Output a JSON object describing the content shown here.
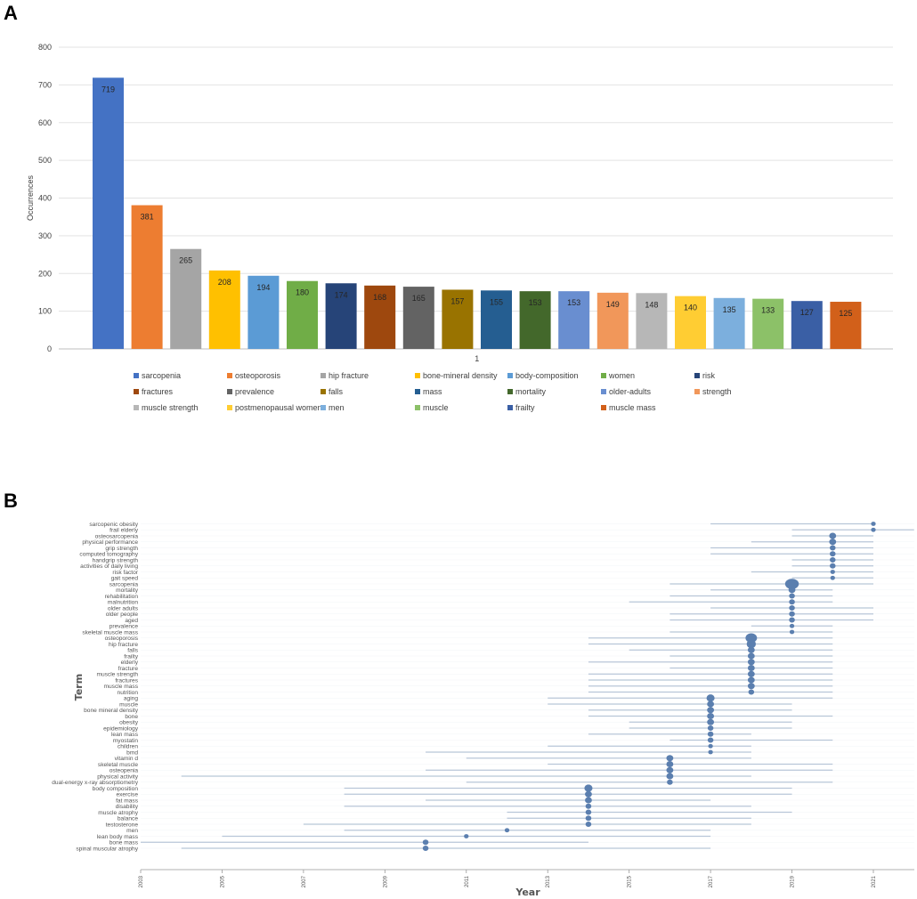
{
  "chart_data": [
    {
      "panel": "A",
      "type": "bar",
      "ylabel": "Occurrences",
      "xlabel": "",
      "category_tick": "1",
      "ylim": [
        0,
        800
      ],
      "yticks": [
        0,
        100,
        200,
        300,
        400,
        500,
        600,
        700,
        800
      ],
      "grid": true,
      "legend_position": "bottom",
      "series": [
        {
          "name": "sarcopenia",
          "value": 719,
          "color": "#4472C4"
        },
        {
          "name": "osteoporosis",
          "value": 381,
          "color": "#ED7D31"
        },
        {
          "name": "hip fracture",
          "value": 265,
          "color": "#A5A5A5"
        },
        {
          "name": "bone-mineral density",
          "value": 208,
          "color": "#FFC000"
        },
        {
          "name": "body-composition",
          "value": 194,
          "color": "#5B9BD5"
        },
        {
          "name": "women",
          "value": 180,
          "color": "#70AD47"
        },
        {
          "name": "risk",
          "value": 174,
          "color": "#264478"
        },
        {
          "name": "fractures",
          "value": 168,
          "color": "#9E480E"
        },
        {
          "name": "prevalence",
          "value": 165,
          "color": "#636363"
        },
        {
          "name": "falls",
          "value": 157,
          "color": "#997300"
        },
        {
          "name": "mass",
          "value": 155,
          "color": "#255E91"
        },
        {
          "name": "mortality",
          "value": 153,
          "color": "#43682B"
        },
        {
          "name": "older-adults",
          "value": 153,
          "color": "#698ED0"
        },
        {
          "name": "strength",
          "value": 149,
          "color": "#F1975A"
        },
        {
          "name": "muscle strength",
          "value": 148,
          "color": "#B7B7B7"
        },
        {
          "name": "postmenopausal women",
          "value": 140,
          "color": "#FFCD33"
        },
        {
          "name": "men",
          "value": 135,
          "color": "#7CAFDD"
        },
        {
          "name": "muscle",
          "value": 133,
          "color": "#8CC168"
        },
        {
          "name": "frailty",
          "value": 127,
          "color": "#3A5FA5"
        },
        {
          "name": "muscle mass",
          "value": 125,
          "color": "#D2601A"
        }
      ]
    },
    {
      "panel": "B",
      "type": "scatter",
      "xlabel": "Year",
      "ylabel": "Term",
      "xlim": [
        2003,
        2022
      ],
      "xticks": [
        "2003",
        "2005",
        "2007",
        "2009",
        "2011",
        "2013",
        "2015",
        "2017",
        "2019",
        "2021"
      ],
      "point_color": "#5B7FAF",
      "line_color": "#B8C6D8",
      "terms": [
        {
          "term": "sarcopenic obesity",
          "start": 2017,
          "end": 2021,
          "median": 2021,
          "size": 1
        },
        {
          "term": "frail elderly",
          "start": 2019,
          "end": 2022,
          "median": 2021,
          "size": 1
        },
        {
          "term": "osteosarcopenia",
          "start": 2019,
          "end": 2021,
          "median": 2020,
          "size": 2
        },
        {
          "term": "physical performance",
          "start": 2018,
          "end": 2021,
          "median": 2020,
          "size": 2
        },
        {
          "term": "grip strength",
          "start": 2017,
          "end": 2021,
          "median": 2020,
          "size": 1.5
        },
        {
          "term": "computed tomography",
          "start": 2017,
          "end": 2021,
          "median": 2020,
          "size": 1.5
        },
        {
          "term": "handgrip strength",
          "start": 2019,
          "end": 2021,
          "median": 2020,
          "size": 1.5
        },
        {
          "term": "activities of daily living",
          "start": 2019,
          "end": 2021,
          "median": 2020,
          "size": 1.5
        },
        {
          "term": "risk factor",
          "start": 2018,
          "end": 2021,
          "median": 2020,
          "size": 1
        },
        {
          "term": "gait speed",
          "start": 2019,
          "end": 2021,
          "median": 2020,
          "size": 1
        },
        {
          "term": "sarcopenia",
          "start": 2016,
          "end": 2021,
          "median": 2019,
          "size": 5
        },
        {
          "term": "mortality",
          "start": 2017,
          "end": 2020,
          "median": 2019,
          "size": 2
        },
        {
          "term": "rehabilitation",
          "start": 2016,
          "end": 2020,
          "median": 2019,
          "size": 1.5
        },
        {
          "term": "malnutrition",
          "start": 2015,
          "end": 2020,
          "median": 2019,
          "size": 1.5
        },
        {
          "term": "older adults",
          "start": 2017,
          "end": 2021,
          "median": 2019,
          "size": 1.5
        },
        {
          "term": "older people",
          "start": 2016,
          "end": 2021,
          "median": 2019,
          "size": 1.5
        },
        {
          "term": "aged",
          "start": 2016,
          "end": 2021,
          "median": 2019,
          "size": 1.5
        },
        {
          "term": "prevalence",
          "start": 2018,
          "end": 2020,
          "median": 2019,
          "size": 1
        },
        {
          "term": "skeletal muscle mass",
          "start": 2016,
          "end": 2020,
          "median": 2019,
          "size": 1
        },
        {
          "term": "osteoporosis",
          "start": 2014,
          "end": 2020,
          "median": 2018,
          "size": 4
        },
        {
          "term": "hip fracture",
          "start": 2014,
          "end": 2020,
          "median": 2018,
          "size": 3
        },
        {
          "term": "falls",
          "start": 2015,
          "end": 2020,
          "median": 2018,
          "size": 2
        },
        {
          "term": "frailty",
          "start": 2016,
          "end": 2020,
          "median": 2018,
          "size": 2
        },
        {
          "term": "elderly",
          "start": 2014,
          "end": 2020,
          "median": 2018,
          "size": 2
        },
        {
          "term": "fracture",
          "start": 2016,
          "end": 2020,
          "median": 2018,
          "size": 2
        },
        {
          "term": "muscle strength",
          "start": 2014,
          "end": 2020,
          "median": 2018,
          "size": 2
        },
        {
          "term": "fractures",
          "start": 2014,
          "end": 2020,
          "median": 2018,
          "size": 2
        },
        {
          "term": "muscle mass",
          "start": 2014,
          "end": 2020,
          "median": 2018,
          "size": 2
        },
        {
          "term": "nutrition",
          "start": 2014,
          "end": 2020,
          "median": 2018,
          "size": 1.5
        },
        {
          "term": "aging",
          "start": 2013,
          "end": 2020,
          "median": 2017,
          "size": 2.5
        },
        {
          "term": "muscle",
          "start": 2013,
          "end": 2019,
          "median": 2017,
          "size": 2
        },
        {
          "term": "bone mineral density",
          "start": 2014,
          "end": 2019,
          "median": 2017,
          "size": 2
        },
        {
          "term": "bone",
          "start": 2014,
          "end": 2020,
          "median": 2017,
          "size": 2
        },
        {
          "term": "obesity",
          "start": 2015,
          "end": 2019,
          "median": 2017,
          "size": 2
        },
        {
          "term": "epidemiology",
          "start": 2015,
          "end": 2019,
          "median": 2017,
          "size": 1.5
        },
        {
          "term": "lean mass",
          "start": 2014,
          "end": 2018,
          "median": 2017,
          "size": 1.5
        },
        {
          "term": "myostatin",
          "start": 2016,
          "end": 2020,
          "median": 2017,
          "size": 1.5
        },
        {
          "term": "children",
          "start": 2013,
          "end": 2018,
          "median": 2017,
          "size": 1
        },
        {
          "term": "bmd",
          "start": 2010,
          "end": 2018,
          "median": 2017,
          "size": 1
        },
        {
          "term": "vitamin d",
          "start": 2011,
          "end": 2018,
          "median": 2016,
          "size": 2
        },
        {
          "term": "skeletal muscle",
          "start": 2013,
          "end": 2020,
          "median": 2016,
          "size": 2
        },
        {
          "term": "osteopenia",
          "start": 2010,
          "end": 2020,
          "median": 2016,
          "size": 2
        },
        {
          "term": "physical activity",
          "start": 2004,
          "end": 2018,
          "median": 2016,
          "size": 2
        },
        {
          "term": "dual-energy x-ray absorptiometry",
          "start": 2011,
          "end": 2020,
          "median": 2016,
          "size": 1.5
        },
        {
          "term": "body composition",
          "start": 2008,
          "end": 2019,
          "median": 2014,
          "size": 2.5
        },
        {
          "term": "exercise",
          "start": 2008,
          "end": 2019,
          "median": 2014,
          "size": 2
        },
        {
          "term": "fat mass",
          "start": 2010,
          "end": 2017,
          "median": 2014,
          "size": 2
        },
        {
          "term": "disability",
          "start": 2008,
          "end": 2018,
          "median": 2014,
          "size": 1.5
        },
        {
          "term": "muscle atrophy",
          "start": 2012,
          "end": 2019,
          "median": 2014,
          "size": 1.5
        },
        {
          "term": "balance",
          "start": 2012,
          "end": 2018,
          "median": 2014,
          "size": 1.5
        },
        {
          "term": "testosterone",
          "start": 2007,
          "end": 2018,
          "median": 2014,
          "size": 1.5
        },
        {
          "term": "men",
          "start": 2008,
          "end": 2017,
          "median": 2012,
          "size": 1
        },
        {
          "term": "lean body mass",
          "start": 2005,
          "end": 2017,
          "median": 2011,
          "size": 1
        },
        {
          "term": "bone mass",
          "start": 2003,
          "end": 2014,
          "median": 2010,
          "size": 1.5
        },
        {
          "term": "spinal muscular atrophy",
          "start": 2004,
          "end": 2017,
          "median": 2010,
          "size": 1.5
        }
      ]
    }
  ],
  "labels": {
    "panel_a": "A",
    "panel_b": "B"
  }
}
